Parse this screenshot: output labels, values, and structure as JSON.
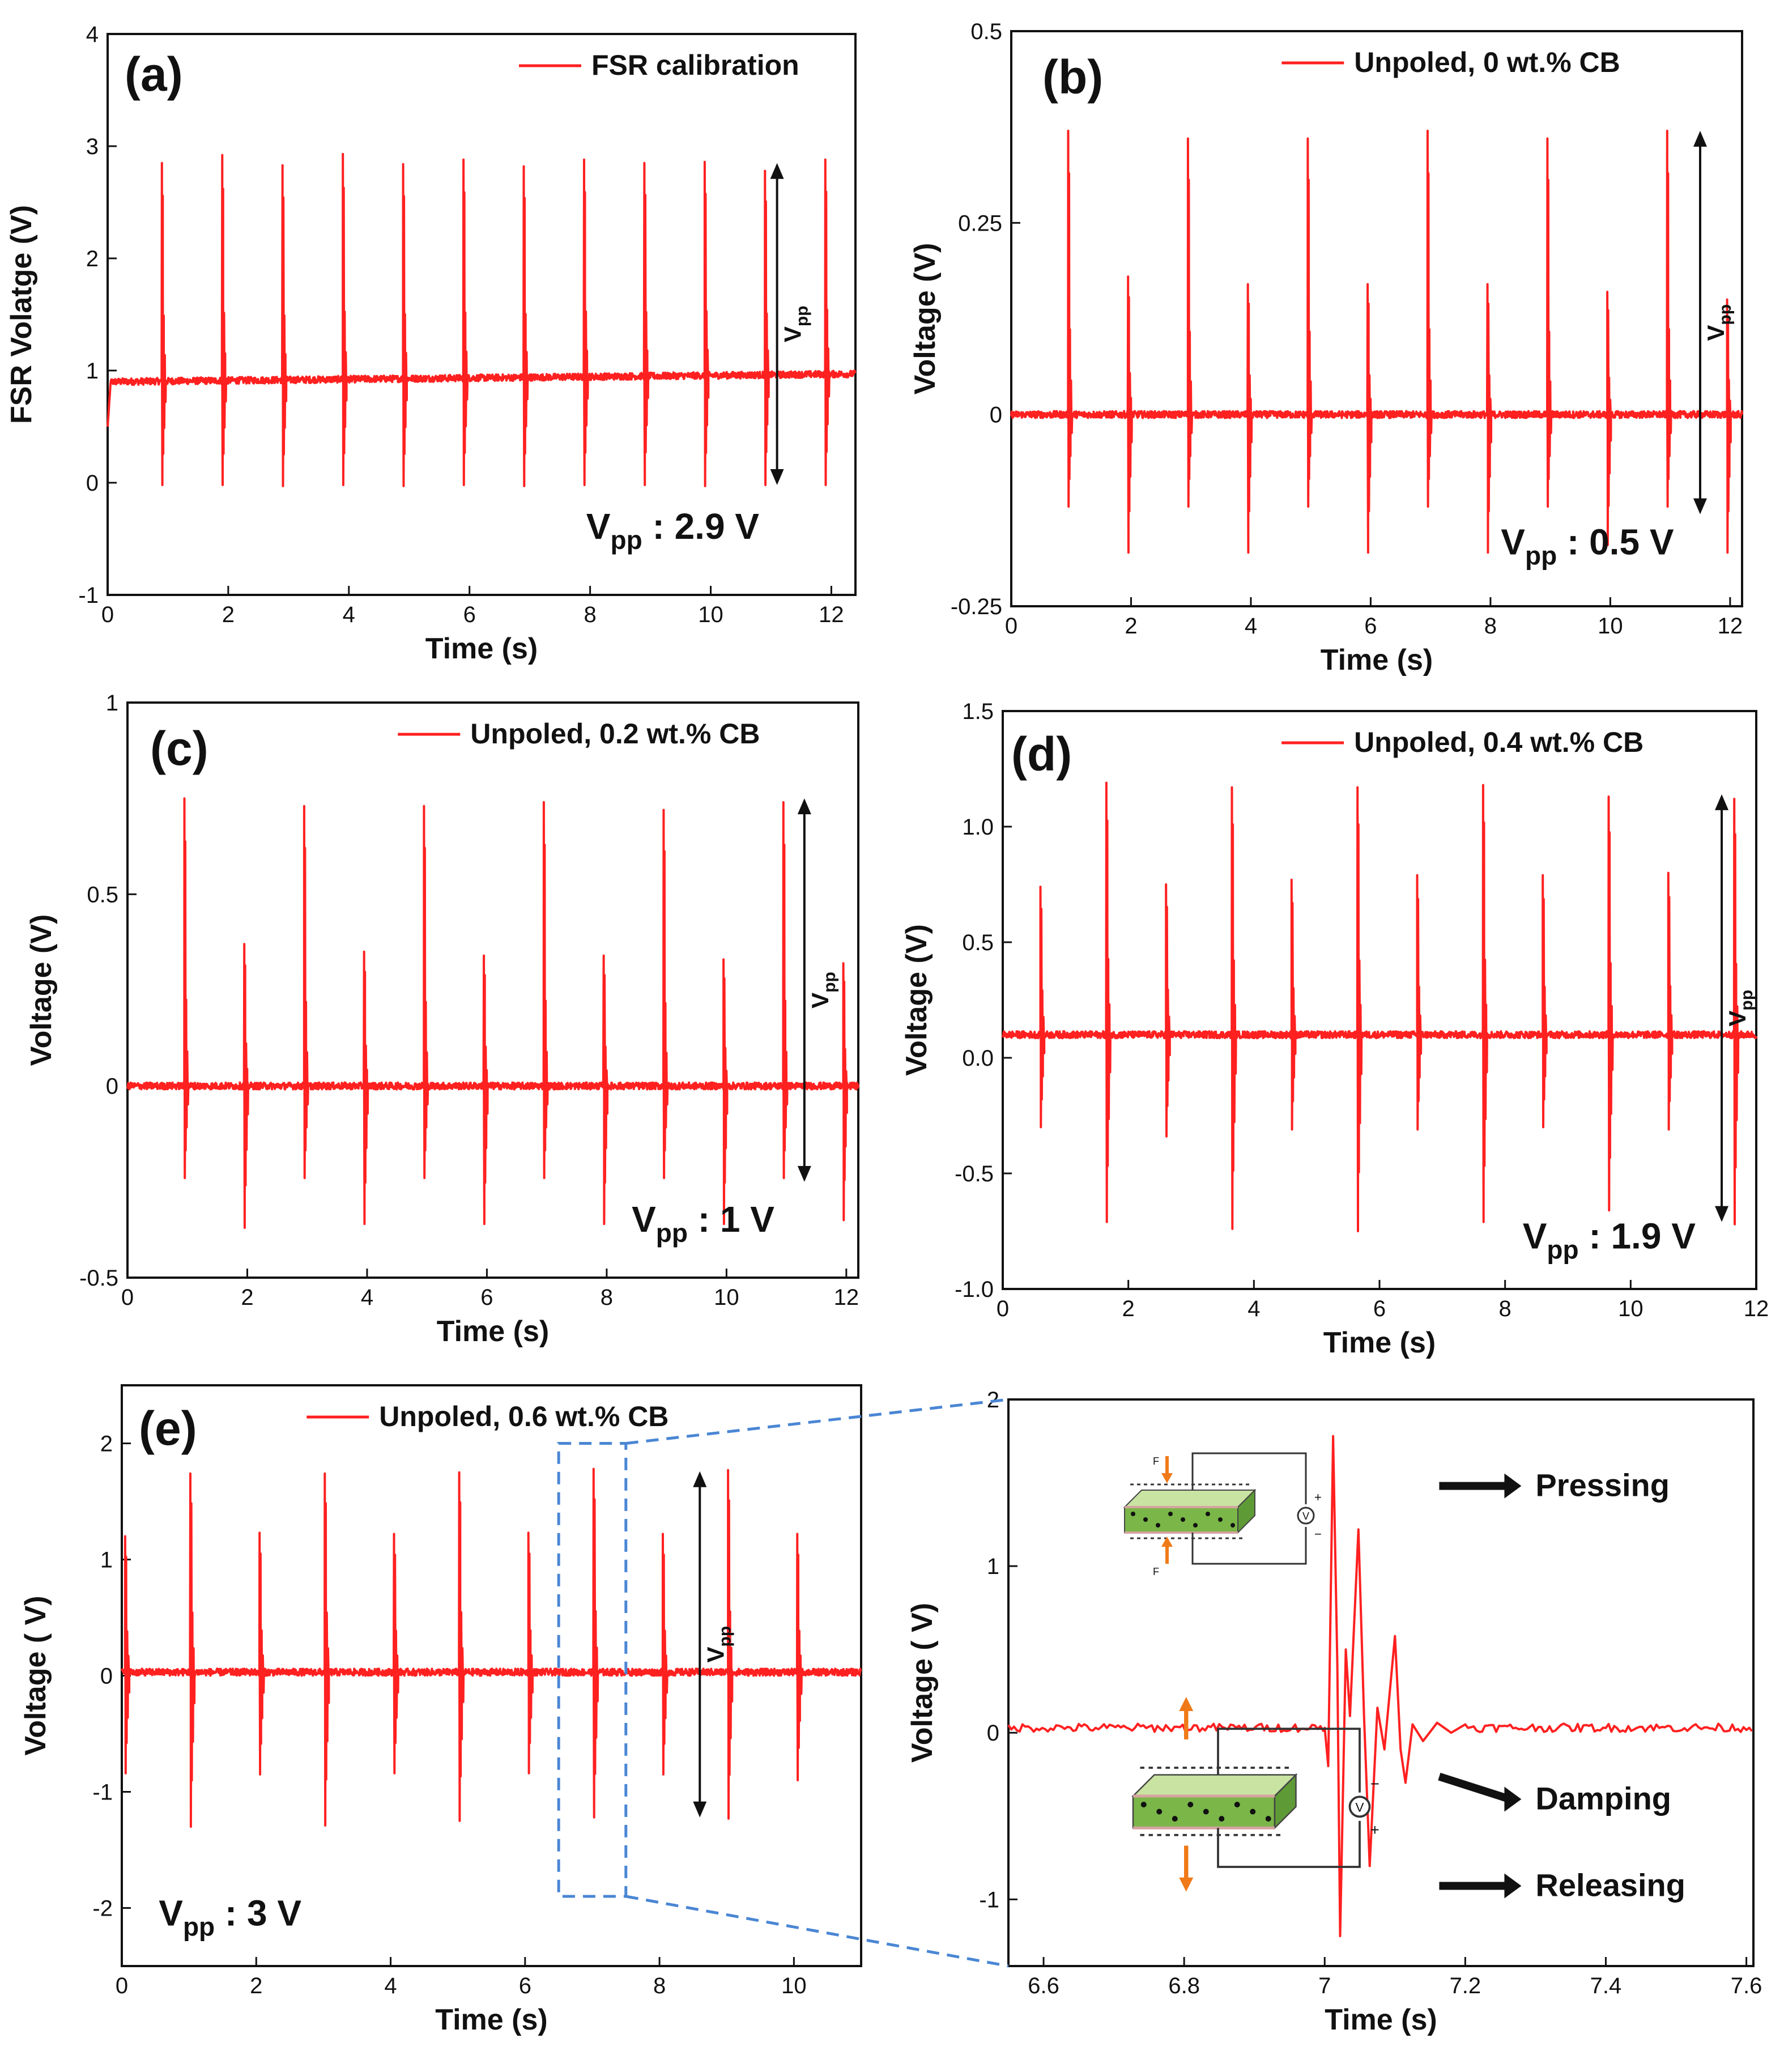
{
  "chart_data": [
    {
      "id": "a",
      "type": "line",
      "panel_label": "(a)",
      "legend": "FSR calibration",
      "xlabel": "Time (s)",
      "ylabel": "FSR Volatge (V)",
      "xlim": [
        0,
        12.4
      ],
      "ylim": [
        -1,
        4
      ],
      "xticks": [
        0,
        2,
        4,
        6,
        8,
        10,
        12
      ],
      "yticks": [
        -1,
        0,
        1,
        2,
        3,
        4
      ],
      "ytick_labels": [
        "-1",
        "0",
        "1",
        "2",
        "3",
        "4"
      ],
      "baseline": 0.9,
      "baseline_end": 0.97,
      "start_dip": 0.5,
      "pulse_times": [
        0.9,
        1.9,
        2.9,
        3.9,
        4.9,
        5.9,
        6.9,
        7.9,
        8.9,
        9.9,
        10.9,
        11.9
      ],
      "pulse_peaks": [
        2.85,
        2.92,
        2.83,
        2.93,
        2.84,
        2.88,
        2.82,
        2.88,
        2.85,
        2.86,
        2.78,
        2.88
      ],
      "pulse_troughs": [
        -0.02,
        -0.02,
        -0.03,
        -0.02,
        -0.03,
        -0.02,
        -0.03,
        -0.02,
        -0.02,
        -0.03,
        -0.02,
        -0.02
      ],
      "vpp_arrow": {
        "x": 11.1,
        "y_top": 2.85,
        "y_bottom": -0.02,
        "label": "V",
        "sub": "pp"
      },
      "vpp_text": {
        "main": "V",
        "sub": "pp",
        "value": " : 2.9 V"
      }
    },
    {
      "id": "b",
      "type": "line",
      "panel_label": "(b)",
      "legend": "Unpoled, 0 wt.% CB",
      "xlabel": "Time (s)",
      "ylabel": "Voltage (V)",
      "xlim": [
        0,
        12.2
      ],
      "ylim": [
        -0.25,
        0.5
      ],
      "xticks": [
        0,
        2,
        4,
        6,
        8,
        10,
        12
      ],
      "yticks": [
        -0.25,
        0,
        0.25,
        0.5
      ],
      "ytick_labels": [
        "-0.25",
        "0",
        "0.25",
        "0.5"
      ],
      "baseline": 0.0,
      "pulse_times": [
        0.95,
        1.95,
        2.95,
        3.95,
        4.95,
        5.95,
        6.95,
        7.95,
        8.95,
        9.95,
        10.95,
        11.95
      ],
      "pulse_peaks": [
        0.37,
        0.18,
        0.36,
        0.17,
        0.36,
        0.17,
        0.37,
        0.17,
        0.36,
        0.16,
        0.37,
        0.15
      ],
      "pulse_troughs": [
        -0.12,
        -0.18,
        -0.12,
        -0.18,
        -0.12,
        -0.18,
        -0.12,
        -0.18,
        -0.12,
        -0.17,
        -0.12,
        -0.18
      ],
      "vpp_arrow": {
        "x": 11.5,
        "y_top": 0.37,
        "y_bottom": -0.13,
        "label": "V",
        "sub": "pp"
      },
      "vpp_text": {
        "main": "V",
        "sub": "pp",
        "value": " : 0.5 V"
      }
    },
    {
      "id": "c",
      "type": "line",
      "panel_label": "(c)",
      "legend": "Unpoled, 0.2 wt.% CB",
      "xlabel": "Time (s)",
      "ylabel": "Voltage (V)",
      "xlim": [
        0,
        12.2
      ],
      "ylim": [
        -0.5,
        1
      ],
      "xticks": [
        0,
        2,
        4,
        6,
        8,
        10,
        12
      ],
      "yticks": [
        -0.5,
        0,
        0.5,
        1
      ],
      "ytick_labels": [
        "-0.5",
        "0",
        "0.5",
        "1"
      ],
      "baseline": 0.0,
      "pulse_times": [
        0.95,
        1.95,
        2.95,
        3.95,
        4.95,
        5.95,
        6.95,
        7.95,
        8.95,
        9.95,
        10.95,
        11.95
      ],
      "pulse_peaks": [
        0.75,
        0.37,
        0.73,
        0.35,
        0.73,
        0.34,
        0.74,
        0.34,
        0.72,
        0.33,
        0.74,
        0.32
      ],
      "pulse_troughs": [
        -0.24,
        -0.37,
        -0.24,
        -0.36,
        -0.24,
        -0.36,
        -0.24,
        -0.36,
        -0.24,
        -0.36,
        -0.24,
        -0.35
      ],
      "vpp_arrow": {
        "x": 11.3,
        "y_top": 0.75,
        "y_bottom": -0.25,
        "label": "V",
        "sub": "pp"
      },
      "vpp_text": {
        "main": "V",
        "sub": "pp",
        "value": " : 1 V"
      }
    },
    {
      "id": "d",
      "type": "line",
      "panel_label": "(d)",
      "legend": "Unpoled, 0.4 wt.% CB",
      "xlabel": "Time (s)",
      "ylabel": "Voltage (V)",
      "xlim": [
        0,
        12
      ],
      "ylim": [
        -1.0,
        1.5
      ],
      "xticks": [
        0,
        2,
        4,
        6,
        8,
        10,
        12
      ],
      "yticks": [
        -1.0,
        -0.5,
        0.0,
        0.5,
        1.0,
        1.5
      ],
      "ytick_labels": [
        "-1.0",
        "-0.5",
        "0.0",
        "0.5",
        "1.0",
        "1.5"
      ],
      "baseline": 0.1,
      "pulse_times": [
        0.6,
        1.65,
        2.6,
        3.65,
        4.6,
        5.65,
        6.6,
        7.65,
        8.6,
        9.65,
        10.6,
        11.65
      ],
      "pulse_peaks": [
        0.74,
        1.19,
        0.75,
        1.17,
        0.77,
        1.17,
        0.79,
        1.18,
        0.79,
        1.13,
        0.8,
        1.12
      ],
      "pulse_troughs": [
        -0.3,
        -0.71,
        -0.34,
        -0.74,
        -0.31,
        -0.75,
        -0.31,
        -0.71,
        -0.3,
        -0.66,
        -0.31,
        -0.72
      ],
      "vpp_arrow": {
        "x": 11.45,
        "y_top": 1.14,
        "y_bottom": -0.71,
        "label": "V",
        "sub": "pp"
      },
      "vpp_text": {
        "main": "V",
        "sub": "pp",
        "value": " : 1.9 V"
      }
    },
    {
      "id": "e",
      "type": "line",
      "panel_label": "(e)",
      "legend": "Unpoled, 0.6 wt.% CB",
      "xlabel": "Time (s)",
      "ylabel": "Voltage ( V)",
      "xlim": [
        0,
        11
      ],
      "ylim": [
        -2.5,
        2.5
      ],
      "xticks": [
        0,
        2,
        4,
        6,
        8,
        10
      ],
      "yticks": [
        -2,
        -1,
        0,
        1,
        2
      ],
      "ytick_labels": [
        "-2",
        "-1",
        "0",
        "1",
        "2"
      ],
      "baseline": 0.03,
      "pulse_times": [
        0.05,
        1.02,
        2.05,
        3.02,
        4.05,
        5.02,
        6.05,
        7.02,
        8.05,
        9.02,
        10.05
      ],
      "pulse_peaks": [
        1.2,
        1.74,
        1.23,
        1.74,
        1.22,
        1.75,
        1.23,
        1.78,
        1.22,
        1.77,
        1.22
      ],
      "pulse_troughs": [
        -0.84,
        -1.3,
        -0.85,
        -1.29,
        -0.84,
        -1.25,
        -0.84,
        -1.22,
        -0.85,
        -1.23,
        -0.9
      ],
      "vpp_arrow": {
        "x": 8.6,
        "y_top": 1.76,
        "y_bottom": -1.22,
        "label": "V",
        "sub": "pp"
      },
      "vpp_text": {
        "main": "V",
        "sub": "pp",
        "value": " : 3 V"
      },
      "zoom_box": {
        "x": [
          6.5,
          7.5
        ],
        "y": [
          -1.9,
          2.0
        ]
      }
    },
    {
      "id": "zoom",
      "type": "line",
      "panel_label": "",
      "legend": "",
      "xlabel": "Time (s)",
      "ylabel": "Voltage ( V)",
      "xlim": [
        6.55,
        7.61
      ],
      "ylim": [
        -1.4,
        2.0
      ],
      "xticks": [
        6.6,
        6.8,
        7.0,
        7.2,
        7.4,
        7.6
      ],
      "yticks": [
        -1,
        0,
        1,
        2
      ],
      "xtick_labels": [
        "6.6",
        "6.8",
        "7",
        "7.2",
        "7.4",
        "7.6"
      ],
      "ytick_labels": [
        "-1",
        "0",
        "1",
        "2"
      ],
      "baseline": 0.03,
      "waveform": [
        [
          7.0,
          0.03
        ],
        [
          7.005,
          -0.2
        ],
        [
          7.012,
          1.78
        ],
        [
          7.018,
          0.4
        ],
        [
          7.022,
          -1.22
        ],
        [
          7.03,
          0.5
        ],
        [
          7.036,
          0.1
        ],
        [
          7.048,
          1.22
        ],
        [
          7.056,
          0.1
        ],
        [
          7.064,
          -0.8
        ],
        [
          7.075,
          0.15
        ],
        [
          7.085,
          -0.1
        ],
        [
          7.1,
          0.58
        ],
        [
          7.108,
          -0.1
        ],
        [
          7.115,
          -0.3
        ],
        [
          7.125,
          0.05
        ],
        [
          7.14,
          -0.05
        ],
        [
          7.16,
          0.06
        ],
        [
          7.18,
          0.0
        ],
        [
          7.2,
          0.05
        ]
      ],
      "annotations": [
        {
          "text": "Pressing",
          "x": 7.3,
          "y": 1.42
        },
        {
          "text": "Damping",
          "x": 7.3,
          "y": -0.46
        },
        {
          "text": "Releasing",
          "x": 7.3,
          "y": -0.98
        }
      ],
      "schematic_labels": {
        "force_top": "F",
        "force_bottom": "F",
        "plus": "+",
        "minus": "−",
        "volt": "V"
      }
    }
  ],
  "colors": {
    "trace": "#ff2020",
    "axis": "#111111",
    "dashed": "#4a86d4",
    "arrow": "#111111",
    "film_green": "#7ab648",
    "film_top": "#c9e3a2",
    "film_edge": "#d6a3a0",
    "force": "#f07a18"
  }
}
